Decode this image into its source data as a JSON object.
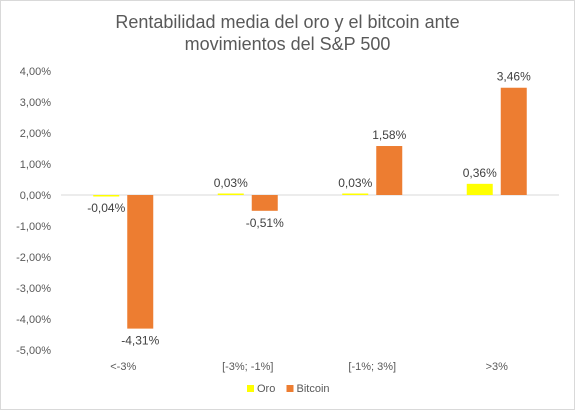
{
  "chart_data": {
    "type": "bar",
    "title_lines": [
      "Rentabilidad media del oro y el bitcoin ante",
      "movimientos del S&P 500"
    ],
    "categories": [
      "<-3%",
      "[-3%; -1%]",
      "[-1%; 3%]",
      ">3%"
    ],
    "series": [
      {
        "name": "Oro",
        "color": "#ffff00",
        "values": [
          -0.04,
          0.03,
          0.03,
          0.36
        ],
        "labels": [
          "-0,04%",
          "0,03%",
          "0,03%",
          "0,36%"
        ]
      },
      {
        "name": "Bitcoin",
        "color": "#ed7d31",
        "values": [
          -4.31,
          -0.51,
          1.58,
          3.46
        ],
        "labels": [
          "-4,31%",
          "-0,51%",
          "1,58%",
          "3,46%"
        ]
      }
    ],
    "ylim": [
      -5,
      4
    ],
    "yticks": [
      4,
      3,
      2,
      1,
      0,
      -1,
      -2,
      -3,
      -4,
      -5
    ],
    "ytick_labels": [
      "4,00%",
      "3,00%",
      "2,00%",
      "1,00%",
      "0,00%",
      "-1,00%",
      "-2,00%",
      "-3,00%",
      "-4,00%",
      "-5,00%"
    ],
    "legend_position": "bottom",
    "grid": false
  }
}
